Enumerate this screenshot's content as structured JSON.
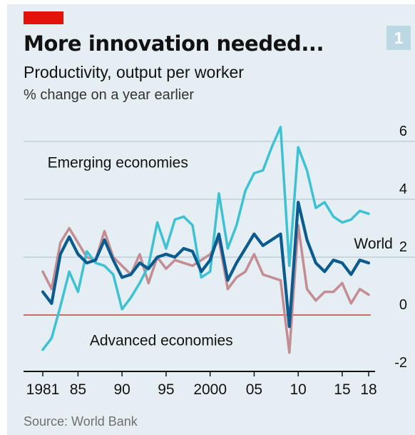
{
  "header": {
    "title": "More innovation needed...",
    "subtitle": "Productivity, output per worker",
    "units": "% change on a year earlier",
    "chart_number": "1"
  },
  "footer": {
    "source": "Source: World Bank"
  },
  "colors": {
    "background": "#e4eef3",
    "gridline": "#b9c9d2",
    "zero_line": "#d06a6a",
    "emerging": "#3ec1d3",
    "world": "#0b5b8f",
    "advanced": "#c48c93",
    "accent": "#e3120b"
  },
  "chart_data": {
    "type": "line",
    "title": "More innovation needed...",
    "subtitle": "Productivity, output per worker",
    "ylabel": "% change on a year earlier",
    "ylim": [
      -2,
      6.6
    ],
    "xlim": [
      1980,
      2019
    ],
    "yticks": [
      -2,
      0,
      2,
      4,
      6
    ],
    "xticks": [
      {
        "value": 1981,
        "label": "1981"
      },
      {
        "value": 1985,
        "label": "85"
      },
      {
        "value": 1990,
        "label": "90"
      },
      {
        "value": 1995,
        "label": "95"
      },
      {
        "value": 2000,
        "label": "2000"
      },
      {
        "value": 2005,
        "label": "05"
      },
      {
        "value": 2010,
        "label": "10"
      },
      {
        "value": 2015,
        "label": "15"
      },
      {
        "value": 2018,
        "label": "18"
      }
    ],
    "x": [
      1981,
      1982,
      1983,
      1984,
      1985,
      1986,
      1987,
      1988,
      1989,
      1990,
      1991,
      1992,
      1993,
      1994,
      1995,
      1996,
      1997,
      1998,
      1999,
      2000,
      2001,
      2002,
      2003,
      2004,
      2005,
      2006,
      2007,
      2008,
      2009,
      2010,
      2011,
      2012,
      2013,
      2014,
      2015,
      2016,
      2017,
      2018
    ],
    "series": [
      {
        "name": "Emerging economies",
        "label_x": 1977,
        "label_y": 5.1,
        "values": [
          -1.2,
          -0.8,
          0.3,
          1.5,
          0.8,
          2.2,
          1.8,
          1.7,
          1.4,
          0.2,
          0.6,
          1.1,
          1.7,
          3.2,
          2.3,
          3.3,
          3.4,
          3.1,
          1.3,
          1.5,
          4.2,
          2.3,
          3.1,
          4.3,
          4.9,
          5.0,
          5.8,
          6.5,
          1.7,
          5.8,
          5.0,
          3.7,
          3.9,
          3.4,
          3.2,
          3.3,
          3.6,
          3.5
        ]
      },
      {
        "name": "World",
        "label_x": 2011.8,
        "label_y": 2.3,
        "values": [
          0.8,
          0.4,
          2.1,
          2.7,
          2.1,
          1.8,
          1.9,
          2.6,
          1.9,
          1.3,
          1.4,
          1.8,
          1.6,
          2.0,
          2.1,
          2.0,
          2.3,
          2.2,
          1.5,
          1.9,
          2.8,
          1.2,
          1.8,
          2.3,
          2.8,
          2.4,
          2.6,
          2.8,
          -0.4,
          3.9,
          2.6,
          1.8,
          1.5,
          1.9,
          1.8,
          1.4,
          1.9,
          1.8
        ]
      },
      {
        "name": "Advanced economies",
        "label_x": 1981.8,
        "label_y": -1.05,
        "values": [
          1.5,
          0.9,
          2.5,
          3.0,
          2.5,
          2.0,
          1.9,
          2.9,
          2.0,
          1.7,
          1.4,
          2.1,
          1.1,
          2.0,
          1.6,
          1.9,
          1.8,
          1.7,
          1.9,
          2.1,
          2.6,
          0.9,
          1.3,
          1.5,
          2.1,
          1.4,
          1.3,
          1.2,
          -1.3,
          3.1,
          0.9,
          0.5,
          0.8,
          0.8,
          1.1,
          0.4,
          0.9,
          0.7
        ]
      }
    ]
  }
}
